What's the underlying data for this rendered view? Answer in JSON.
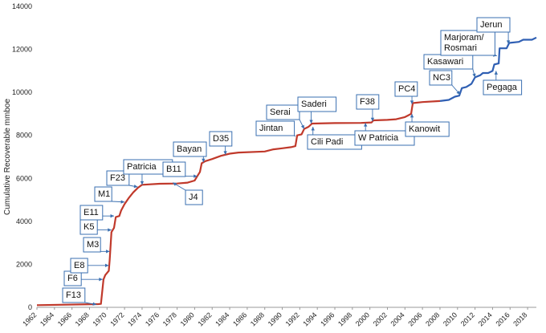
{
  "chart_data": {
    "type": "line",
    "ylabel": "Cumulative Recoverable mmboe",
    "xlim": [
      1962,
      2019
    ],
    "ylim": [
      0,
      14000
    ],
    "y_ticks": [
      0,
      2000,
      4000,
      6000,
      8000,
      10000,
      12000,
      14000
    ],
    "y_tick_labels": [
      "0",
      "2000",
      "4000",
      "6000",
      "8000",
      "10000",
      "12000",
      "14000"
    ],
    "x_ticks": [
      1962,
      1964,
      1966,
      1968,
      1970,
      1972,
      1974,
      1976,
      1978,
      1980,
      1982,
      1984,
      1986,
      1988,
      1990,
      1992,
      1994,
      1996,
      1998,
      2000,
      2002,
      2004,
      2006,
      2008,
      2010,
      2012,
      2014,
      2016,
      2018
    ],
    "x_tick_labels": [
      "1962",
      "1964",
      "1966",
      "1968",
      "1970",
      "1972",
      "1974",
      "1976",
      "1978",
      "1980",
      "1982",
      "1984",
      "1986",
      "1988",
      "1990",
      "1992",
      "1994",
      "1996",
      "1998",
      "2000",
      "2002",
      "2004",
      "2006",
      "2008",
      "2010",
      "2012",
      "2014",
      "2016",
      "2018"
    ],
    "grid": false,
    "series": [
      {
        "color": "#c0392b",
        "points": [
          [
            1962,
            100
          ],
          [
            1969,
            150
          ],
          [
            1969.3,
            160
          ],
          [
            1969.6,
            1300
          ],
          [
            1969.8,
            1500
          ],
          [
            1970.2,
            1700
          ],
          [
            1970.3,
            2200
          ],
          [
            1970.5,
            3500
          ],
          [
            1970.8,
            3700
          ],
          [
            1971,
            4200
          ],
          [
            1971.4,
            4250
          ],
          [
            1971.6,
            4500
          ],
          [
            1972,
            4800
          ],
          [
            1972.5,
            5100
          ],
          [
            1973,
            5350
          ],
          [
            1973.5,
            5550
          ],
          [
            1974,
            5700
          ],
          [
            1976,
            5750
          ],
          [
            1978,
            5760
          ],
          [
            1979.2,
            5800
          ],
          [
            1980,
            5900
          ],
          [
            1980.3,
            6100
          ],
          [
            1980.6,
            6300
          ],
          [
            1980.8,
            6700
          ],
          [
            1981.2,
            6800
          ],
          [
            1982,
            6900
          ],
          [
            1983,
            7050
          ],
          [
            1984,
            7150
          ],
          [
            1985,
            7200
          ],
          [
            1988,
            7250
          ],
          [
            1989,
            7350
          ],
          [
            1990,
            7400
          ],
          [
            1991,
            7450
          ],
          [
            1991.5,
            7500
          ],
          [
            1991.7,
            8000
          ],
          [
            1992.2,
            8050
          ],
          [
            1992.5,
            8300
          ],
          [
            1993,
            8400
          ],
          [
            1993.4,
            8550
          ],
          [
            1996,
            8570
          ],
          [
            1999,
            8580
          ],
          [
            2000.2,
            8600
          ],
          [
            2000.4,
            8700
          ],
          [
            2002,
            8720
          ],
          [
            2003,
            8750
          ],
          [
            2004,
            8850
          ],
          [
            2004.7,
            9000
          ],
          [
            2004.9,
            9500
          ],
          [
            2006,
            9550
          ],
          [
            2008,
            9600
          ]
        ]
      },
      {
        "color": "#2f5fb3",
        "points": [
          [
            2008,
            9600
          ],
          [
            2009,
            9650
          ],
          [
            2009.7,
            9800
          ],
          [
            2010.2,
            9850
          ],
          [
            2010.5,
            10200
          ],
          [
            2011,
            10250
          ],
          [
            2011.6,
            10400
          ],
          [
            2012,
            10700
          ],
          [
            2012.6,
            10800
          ],
          [
            2012.9,
            10900
          ],
          [
            2013.5,
            10900
          ],
          [
            2014,
            11000
          ],
          [
            2014.2,
            11300
          ],
          [
            2014.7,
            11350
          ],
          [
            2014.8,
            12050
          ],
          [
            2015.6,
            12050
          ],
          [
            2015.9,
            12300
          ],
          [
            2017,
            12350
          ],
          [
            2017.5,
            12450
          ],
          [
            2018.5,
            12450
          ],
          [
            2019,
            12550
          ]
        ]
      }
    ],
    "annotations": [
      {
        "label": "F13",
        "x": 1968.8,
        "y": 130
      },
      {
        "label": "F6",
        "x": 1969.5,
        "y": 1300
      },
      {
        "label": "E8",
        "x": 1970.2,
        "y": 1950
      },
      {
        "label": "M3",
        "x": 1970.3,
        "y": 2600
      },
      {
        "label": "K5",
        "x": 1970.5,
        "y": 3600
      },
      {
        "label": "E11",
        "x": 1970.8,
        "y": 4250
      },
      {
        "label": "M1",
        "x": 1972,
        "y": 4900
      },
      {
        "label": "F23",
        "x": 1973.5,
        "y": 5600
      },
      {
        "label": "Patricia",
        "x": 1974,
        "y": 5700
      },
      {
        "label": "J4",
        "x": 1977.5,
        "y": 5800
      },
      {
        "label": "B11",
        "x": 1980.3,
        "y": 6100
      },
      {
        "label": "Bayan",
        "x": 1981,
        "y": 6750
      },
      {
        "label": "D35",
        "x": 1983.5,
        "y": 7100
      },
      {
        "label": "Jintan",
        "x": 1991.5,
        "y": 7950
      },
      {
        "label": "Serai",
        "x": 1992.5,
        "y": 8300
      },
      {
        "label": "Saderi",
        "x": 1993.3,
        "y": 8550
      },
      {
        "label": "Cili Padi",
        "x": 1993.5,
        "y": 8400
      },
      {
        "label": "F38",
        "x": 2000.3,
        "y": 8650
      },
      {
        "label": "W Patricia",
        "x": 1999.5,
        "y": 8580
      },
      {
        "label": "PC4",
        "x": 2004.8,
        "y": 9450
      },
      {
        "label": "Kanowit",
        "x": 2004.8,
        "y": 9000
      },
      {
        "label": "NC3",
        "x": 2010.3,
        "y": 9900
      },
      {
        "label": "Kasawari",
        "x": 2012,
        "y": 10700
      },
      {
        "label": "Marjoram/ Rosmari",
        "x": 2014.5,
        "y": 11700
      },
      {
        "label": "Pegaga",
        "x": 2014.4,
        "y": 11000
      },
      {
        "label": "Jerun",
        "x": 2015.8,
        "y": 12250
      }
    ]
  }
}
